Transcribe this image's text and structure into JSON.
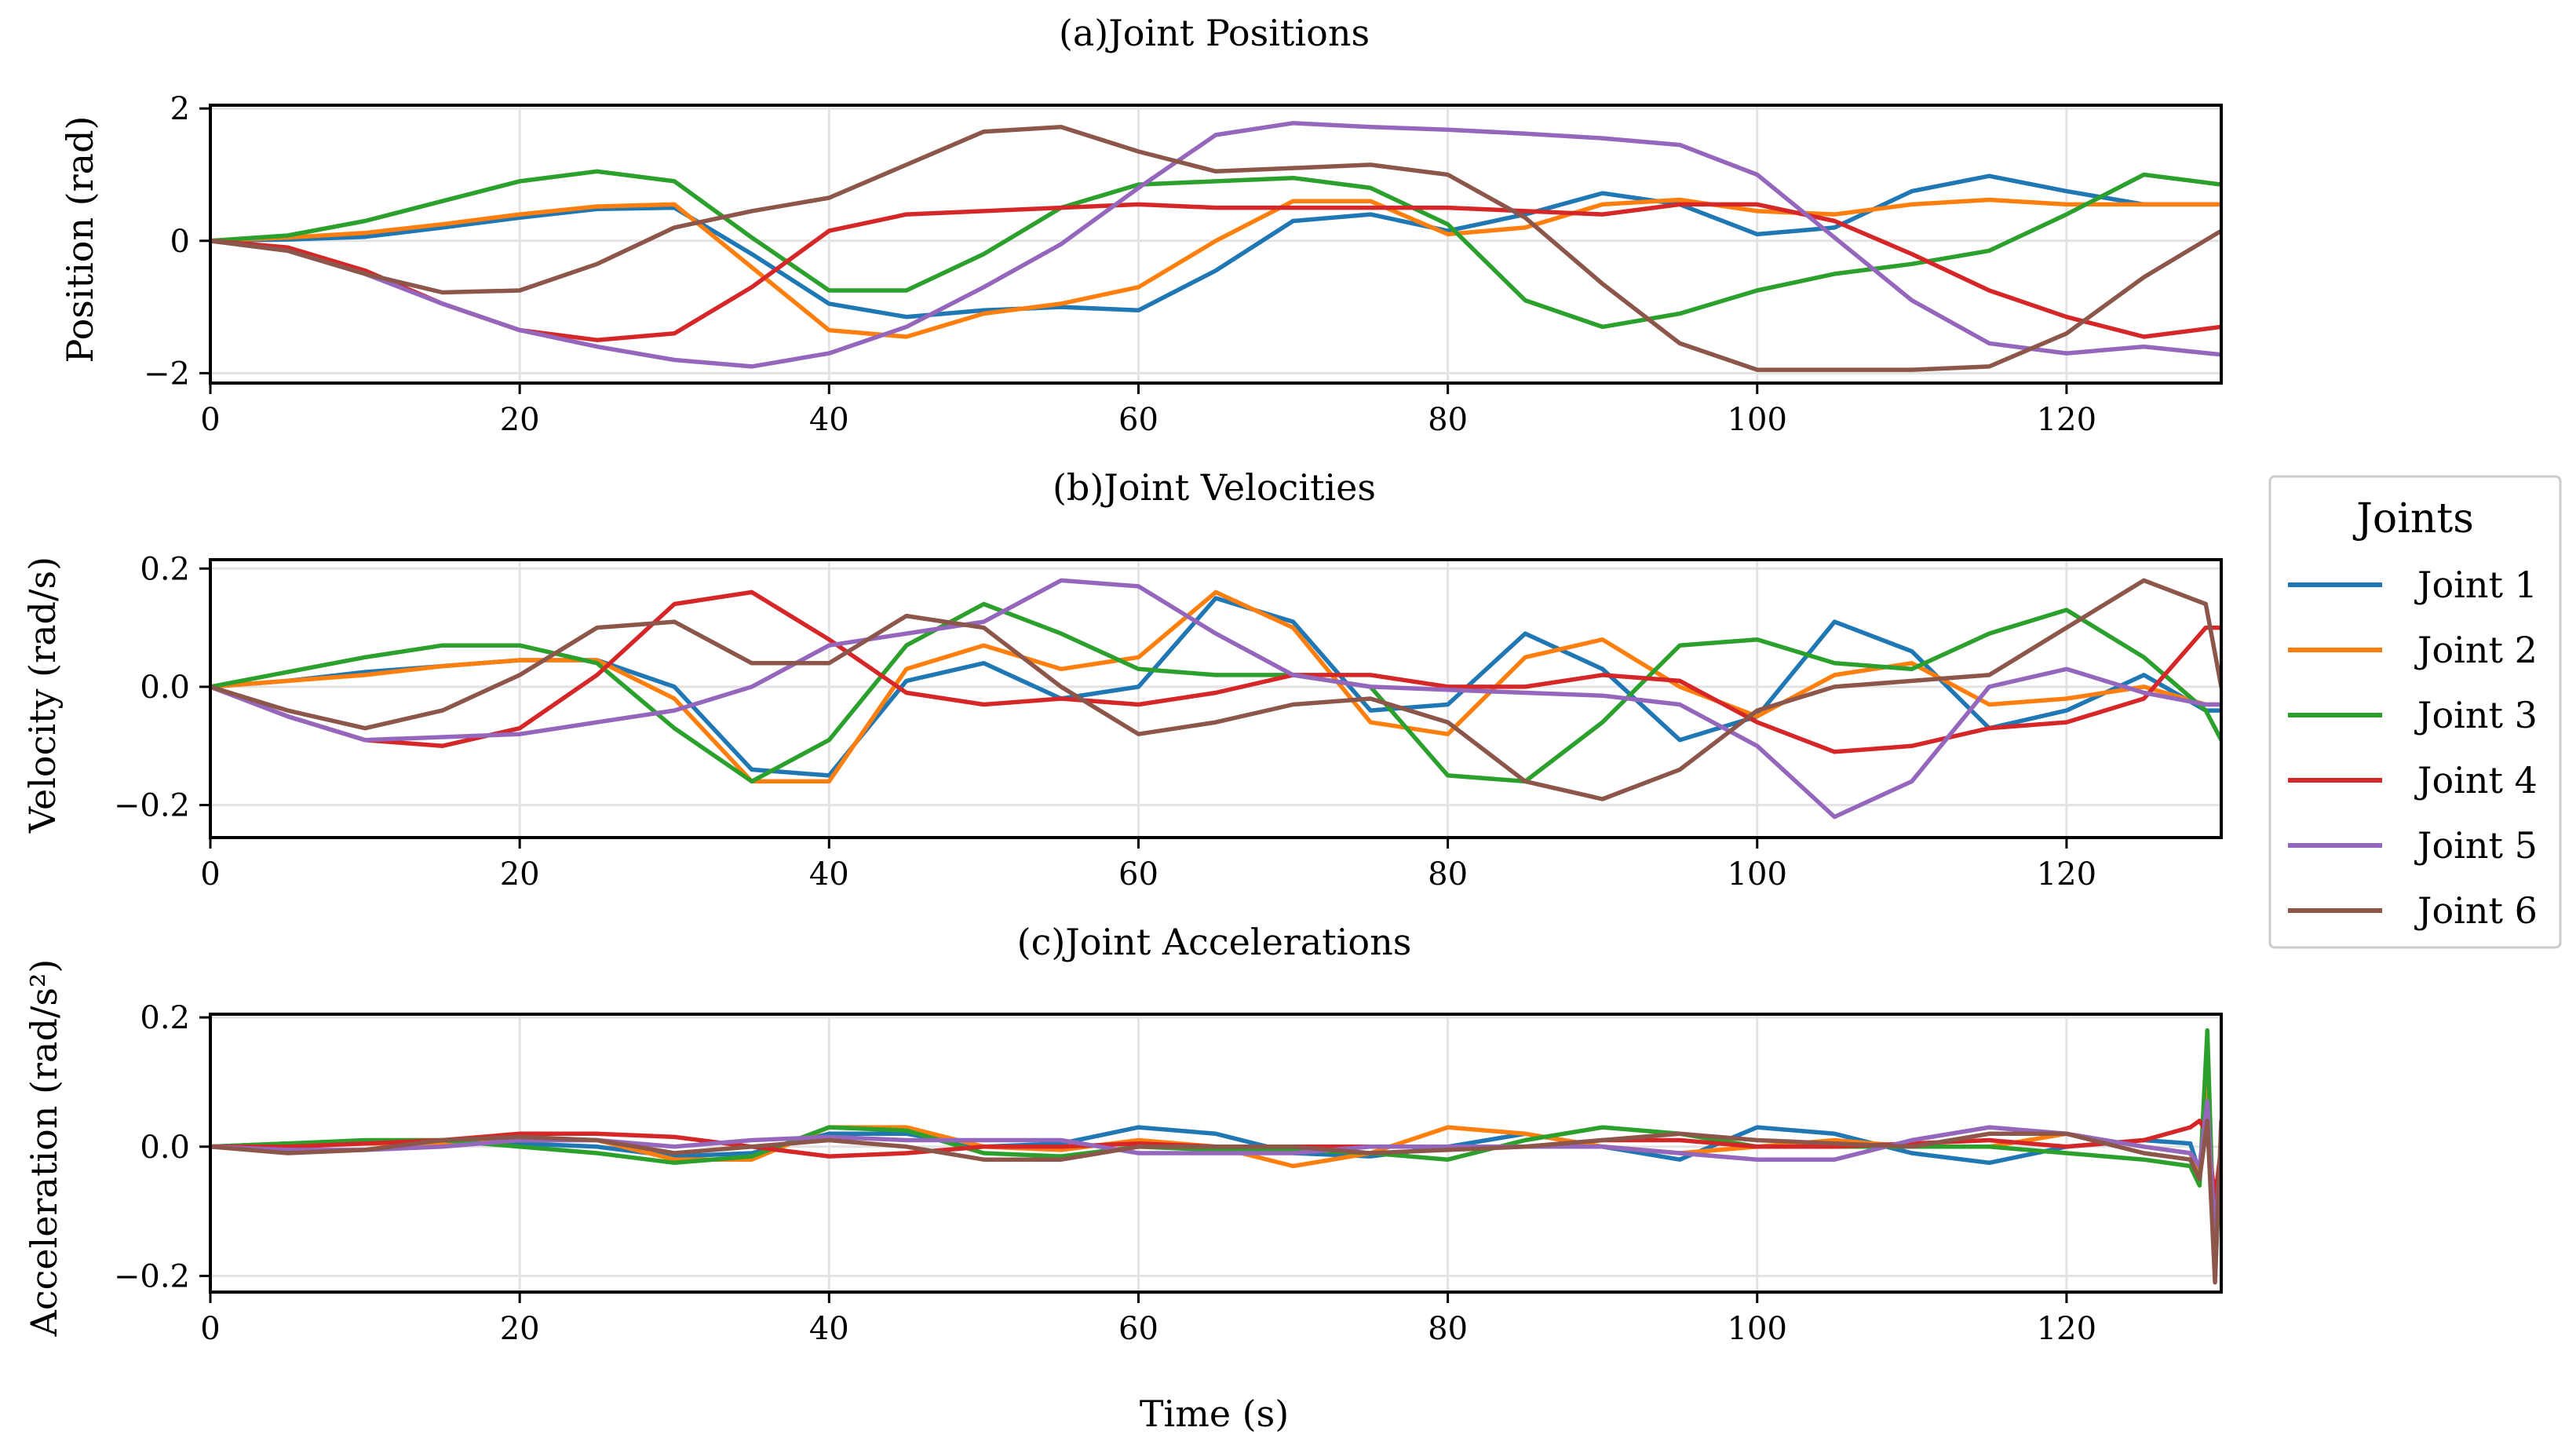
{
  "figure": {
    "xlabel": "Time (s)",
    "xlim": [
      0,
      130
    ],
    "xticks": [
      0,
      20,
      40,
      60,
      80,
      100,
      120
    ],
    "grid": true
  },
  "legend": {
    "title": "Joints",
    "placement": "right, centered vertically"
  },
  "chart_data": [
    {
      "type": "line",
      "title": "(a)Joint Positions",
      "xlabel": "",
      "ylabel": "Position (rad)",
      "xlim": [
        0,
        130
      ],
      "ylim": [
        -2.15,
        2.05
      ],
      "yticks": [
        -2,
        0,
        2
      ],
      "ytick_labels": [
        "−2",
        "0",
        "2"
      ],
      "x": [
        0,
        5,
        10,
        15,
        20,
        25,
        30,
        35,
        40,
        45,
        50,
        55,
        60,
        65,
        70,
        75,
        80,
        85,
        90,
        95,
        100,
        105,
        110,
        115,
        120,
        125,
        130
      ],
      "series": [
        {
          "name": "Joint 1",
          "color": "#1f77b4",
          "values": [
            0,
            0.02,
            0.06,
            0.2,
            0.35,
            0.48,
            0.5,
            -0.2,
            -0.95,
            -1.15,
            -1.05,
            -1.0,
            -1.05,
            -0.45,
            0.3,
            0.4,
            0.15,
            0.4,
            0.72,
            0.55,
            0.1,
            0.2,
            0.75,
            0.98,
            0.75,
            0.55,
            0.55
          ]
        },
        {
          "name": "Joint 2",
          "color": "#ff7f0e",
          "values": [
            0,
            0.05,
            0.12,
            0.25,
            0.4,
            0.52,
            0.55,
            -0.4,
            -1.35,
            -1.45,
            -1.1,
            -0.95,
            -0.7,
            0.0,
            0.6,
            0.6,
            0.1,
            0.2,
            0.55,
            0.62,
            0.45,
            0.4,
            0.55,
            0.62,
            0.55,
            0.55,
            0.55
          ]
        },
        {
          "name": "Joint 3",
          "color": "#2ca02c",
          "values": [
            0,
            0.08,
            0.3,
            0.6,
            0.9,
            1.05,
            0.9,
            0.05,
            -0.75,
            -0.75,
            -0.2,
            0.5,
            0.85,
            0.9,
            0.95,
            0.8,
            0.25,
            -0.9,
            -1.3,
            -1.1,
            -0.75,
            -0.5,
            -0.35,
            -0.15,
            0.4,
            1.0,
            0.85
          ]
        },
        {
          "name": "Joint 4",
          "color": "#d62728",
          "values": [
            0,
            -0.1,
            -0.45,
            -0.95,
            -1.35,
            -1.5,
            -1.4,
            -0.7,
            0.15,
            0.4,
            0.45,
            0.5,
            0.55,
            0.5,
            0.5,
            0.5,
            0.5,
            0.45,
            0.4,
            0.55,
            0.55,
            0.3,
            -0.2,
            -0.75,
            -1.15,
            -1.45,
            -1.3
          ]
        },
        {
          "name": "Joint 5",
          "color": "#9467bd",
          "values": [
            0,
            -0.15,
            -0.5,
            -0.95,
            -1.35,
            -1.6,
            -1.8,
            -1.9,
            -1.7,
            -1.3,
            -0.7,
            -0.05,
            0.8,
            1.6,
            1.78,
            1.72,
            1.68,
            1.62,
            1.55,
            1.45,
            1.0,
            0.05,
            -0.9,
            -1.55,
            -1.7,
            -1.6,
            -1.72
          ]
        },
        {
          "name": "Joint 6",
          "color": "#8c564b",
          "values": [
            0,
            -0.15,
            -0.5,
            -0.78,
            -0.75,
            -0.35,
            0.2,
            0.45,
            0.65,
            1.15,
            1.65,
            1.72,
            1.35,
            1.05,
            1.1,
            1.15,
            1.0,
            0.35,
            -0.65,
            -1.55,
            -1.95,
            -1.95,
            -1.95,
            -1.9,
            -1.4,
            -0.55,
            0.15
          ]
        }
      ]
    },
    {
      "type": "line",
      "title": "(b)Joint Velocities",
      "xlabel": "",
      "ylabel": "Velocity (rad/s)",
      "xlim": [
        0,
        130
      ],
      "ylim": [
        -0.255,
        0.215
      ],
      "yticks": [
        -0.2,
        0.0,
        0.2
      ],
      "ytick_labels": [
        "−0.2",
        "0.0",
        "0.2"
      ],
      "x": [
        0,
        5,
        10,
        15,
        20,
        25,
        30,
        35,
        40,
        45,
        50,
        55,
        60,
        65,
        70,
        75,
        80,
        85,
        90,
        95,
        100,
        105,
        110,
        115,
        120,
        125,
        129,
        130
      ],
      "series": [
        {
          "name": "Joint 1",
          "color": "#1f77b4",
          "values": [
            0,
            0.01,
            0.025,
            0.035,
            0.045,
            0.045,
            0.0,
            -0.14,
            -0.15,
            0.01,
            0.04,
            -0.02,
            0.0,
            0.15,
            0.11,
            -0.04,
            -0.03,
            0.09,
            0.03,
            -0.09,
            -0.05,
            0.11,
            0.06,
            -0.07,
            -0.04,
            0.02,
            -0.04,
            -0.04
          ]
        },
        {
          "name": "Joint 2",
          "color": "#ff7f0e",
          "values": [
            0,
            0.01,
            0.02,
            0.035,
            0.045,
            0.045,
            -0.02,
            -0.16,
            -0.16,
            0.03,
            0.07,
            0.03,
            0.05,
            0.16,
            0.1,
            -0.06,
            -0.08,
            0.05,
            0.08,
            0.0,
            -0.05,
            0.02,
            0.04,
            -0.03,
            -0.02,
            0.0,
            -0.03,
            -0.03
          ]
        },
        {
          "name": "Joint 3",
          "color": "#2ca02c",
          "values": [
            0,
            0.025,
            0.05,
            0.07,
            0.07,
            0.04,
            -0.07,
            -0.16,
            -0.09,
            0.07,
            0.14,
            0.09,
            0.03,
            0.02,
            0.02,
            0.0,
            -0.15,
            -0.16,
            -0.06,
            0.07,
            0.08,
            0.04,
            0.03,
            0.09,
            0.13,
            0.05,
            -0.04,
            -0.09
          ]
        },
        {
          "name": "Joint 4",
          "color": "#d62728",
          "values": [
            0,
            -0.05,
            -0.09,
            -0.1,
            -0.07,
            0.02,
            0.14,
            0.16,
            0.08,
            -0.01,
            -0.03,
            -0.02,
            -0.03,
            -0.01,
            0.02,
            0.02,
            0.0,
            0.0,
            0.02,
            0.01,
            -0.06,
            -0.11,
            -0.1,
            -0.07,
            -0.06,
            -0.02,
            0.1,
            0.1
          ]
        },
        {
          "name": "Joint 5",
          "color": "#9467bd",
          "values": [
            0,
            -0.05,
            -0.09,
            -0.085,
            -0.08,
            -0.06,
            -0.04,
            0.0,
            0.07,
            0.09,
            0.11,
            0.18,
            0.17,
            0.09,
            0.02,
            0.0,
            -0.005,
            -0.01,
            -0.015,
            -0.03,
            -0.1,
            -0.22,
            -0.16,
            0.0,
            0.03,
            -0.01,
            -0.03,
            -0.03
          ]
        },
        {
          "name": "Joint 6",
          "color": "#8c564b",
          "values": [
            0,
            -0.04,
            -0.07,
            -0.04,
            0.02,
            0.1,
            0.11,
            0.04,
            0.04,
            0.12,
            0.1,
            0.0,
            -0.08,
            -0.06,
            -0.03,
            -0.02,
            -0.06,
            -0.16,
            -0.19,
            -0.14,
            -0.04,
            0.0,
            0.01,
            0.02,
            0.1,
            0.18,
            0.14,
            0.0
          ]
        }
      ]
    },
    {
      "type": "line",
      "title": "(c)Joint Accelerations",
      "xlabel": "Time (s)",
      "ylabel": "Acceleration (rad/s²)",
      "xlim": [
        0,
        130
      ],
      "ylim": [
        -0.225,
        0.205
      ],
      "yticks": [
        -0.2,
        0.0,
        0.2
      ],
      "ytick_labels": [
        "−0.2",
        "0.0",
        "0.2"
      ],
      "x": [
        0,
        5,
        10,
        15,
        20,
        25,
        30,
        35,
        40,
        45,
        50,
        55,
        60,
        65,
        70,
        75,
        80,
        85,
        90,
        95,
        100,
        105,
        110,
        115,
        120,
        125,
        128,
        128.6,
        129.1,
        129.6,
        130
      ],
      "series": [
        {
          "name": "Joint 1",
          "color": "#1f77b4",
          "values": [
            0,
            0.005,
            0.005,
            0.005,
            0.005,
            0.0,
            -0.015,
            -0.01,
            0.02,
            0.02,
            0.0,
            0.005,
            0.03,
            0.02,
            -0.01,
            -0.015,
            0.0,
            0.02,
            0.0,
            -0.02,
            0.03,
            0.02,
            -0.01,
            -0.025,
            0.0,
            0.01,
            0.005,
            -0.04,
            0.06,
            -0.12,
            0.0
          ]
        },
        {
          "name": "Joint 2",
          "color": "#ff7f0e",
          "values": [
            0,
            0.005,
            0.005,
            0.005,
            0.01,
            0.01,
            -0.02,
            -0.02,
            0.03,
            0.03,
            0.0,
            -0.005,
            0.01,
            0.0,
            -0.03,
            -0.01,
            0.03,
            0.02,
            0.0,
            -0.01,
            0.0,
            0.01,
            0.0,
            0.0,
            0.02,
            0.0,
            -0.01,
            -0.05,
            0.1,
            -0.15,
            0.01
          ]
        },
        {
          "name": "Joint 3",
          "color": "#2ca02c",
          "values": [
            0,
            0.005,
            0.01,
            0.01,
            0.0,
            -0.01,
            -0.025,
            -0.015,
            0.03,
            0.025,
            -0.01,
            -0.015,
            0.0,
            -0.005,
            -0.005,
            -0.01,
            -0.02,
            0.01,
            0.03,
            0.02,
            0.0,
            0.0,
            0.0,
            0.0,
            -0.01,
            -0.02,
            -0.03,
            -0.06,
            0.18,
            -0.2,
            0.0
          ]
        },
        {
          "name": "Joint 4",
          "color": "#d62728",
          "values": [
            0,
            0.0,
            0.005,
            0.01,
            0.02,
            0.02,
            0.015,
            0.0,
            -0.015,
            -0.01,
            0.0,
            0.0,
            0.005,
            0.0,
            0.0,
            0.0,
            0.0,
            0.0,
            0.01,
            0.01,
            0.0,
            0.0,
            0.005,
            0.01,
            0.0,
            0.01,
            0.03,
            0.04,
            0.02,
            -0.08,
            0.0
          ]
        },
        {
          "name": "Joint 5",
          "color": "#9467bd",
          "values": [
            0,
            -0.005,
            -0.005,
            0.0,
            0.01,
            0.01,
            0.0,
            0.01,
            0.015,
            0.01,
            0.01,
            0.01,
            -0.01,
            -0.01,
            -0.01,
            0.0,
            0.0,
            0.0,
            0.0,
            -0.01,
            -0.02,
            -0.02,
            0.01,
            0.03,
            0.02,
            0.0,
            -0.01,
            -0.03,
            0.07,
            -0.14,
            0.0
          ]
        },
        {
          "name": "Joint 6",
          "color": "#8c564b",
          "values": [
            0,
            -0.01,
            -0.005,
            0.01,
            0.015,
            0.01,
            -0.01,
            0.0,
            0.01,
            0.0,
            -0.02,
            -0.02,
            0.0,
            0.0,
            0.0,
            -0.01,
            -0.005,
            0.0,
            0.01,
            0.02,
            0.01,
            0.005,
            0.0,
            0.02,
            0.02,
            -0.01,
            -0.02,
            -0.05,
            0.04,
            -0.21,
            0.04
          ]
        }
      ]
    }
  ]
}
